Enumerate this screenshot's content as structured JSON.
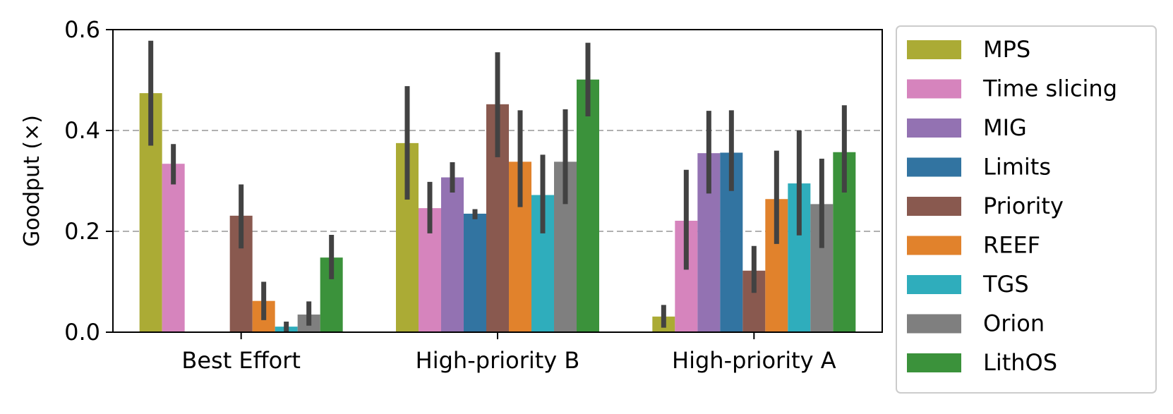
{
  "chart_data": {
    "type": "bar",
    "title": "",
    "xlabel": "",
    "ylabel": "Goodput (×)",
    "ylim": [
      0,
      0.6
    ],
    "yticks": [
      "0.0",
      "0.2",
      "0.4",
      "0.6"
    ],
    "ytick_values": [
      0,
      0.2,
      0.4,
      0.6
    ],
    "grid": "horizontal-dashed",
    "legend_position": "right-outside",
    "categories": [
      "Best Effort",
      "High-priority B",
      "High-priority A"
    ],
    "series": [
      {
        "name": "MPS",
        "color": "#abab35",
        "values": [
          0.474,
          0.375,
          0.031
        ],
        "err_low": [
          0.37,
          0.263,
          0.009
        ],
        "err_high": [
          0.578,
          0.488,
          0.054
        ]
      },
      {
        "name": "Time slicing",
        "color": "#d684bd",
        "values": [
          0.334,
          0.246,
          0.221
        ],
        "err_low": [
          0.293,
          0.196,
          0.124
        ],
        "err_high": [
          0.373,
          0.298,
          0.322
        ]
      },
      {
        "name": "MIG",
        "color": "#9372b2",
        "values": [
          0,
          0.307,
          0.355
        ],
        "err_low": [
          null,
          0.277,
          0.275
        ],
        "err_high": [
          null,
          0.337,
          0.439
        ]
      },
      {
        "name": "Limits",
        "color": "#3274a1",
        "values": [
          0,
          0.235,
          0.356
        ],
        "err_low": [
          null,
          0.224,
          0.28
        ],
        "err_high": [
          null,
          0.244,
          0.44
        ]
      },
      {
        "name": "Priority",
        "color": "#89594f",
        "values": [
          0.231,
          0.452,
          0.122
        ],
        "err_low": [
          0.166,
          0.347,
          0.078
        ],
        "err_high": [
          0.293,
          0.555,
          0.171
        ]
      },
      {
        "name": "REEF",
        "color": "#e1822c",
        "values": [
          0.062,
          0.338,
          0.264
        ],
        "err_low": [
          0.024,
          0.248,
          0.175
        ],
        "err_high": [
          0.1,
          0.44,
          0.36
        ]
      },
      {
        "name": "TGS",
        "color": "#2fadbc",
        "values": [
          0.011,
          0.272,
          0.295
        ],
        "err_low": [
          0.001,
          0.196,
          0.192
        ],
        "err_high": [
          0.021,
          0.352,
          0.4
        ]
      },
      {
        "name": "Orion",
        "color": "#7f7f7f",
        "values": [
          0.035,
          0.338,
          0.254
        ],
        "err_low": [
          0.013,
          0.254,
          0.167
        ],
        "err_high": [
          0.061,
          0.442,
          0.344
        ]
      },
      {
        "name": "LithOS",
        "color": "#3b923b",
        "values": [
          0.148,
          0.501,
          0.357
        ],
        "err_low": [
          0.105,
          0.428,
          0.277
        ],
        "err_high": [
          0.193,
          0.574,
          0.45
        ]
      }
    ]
  }
}
